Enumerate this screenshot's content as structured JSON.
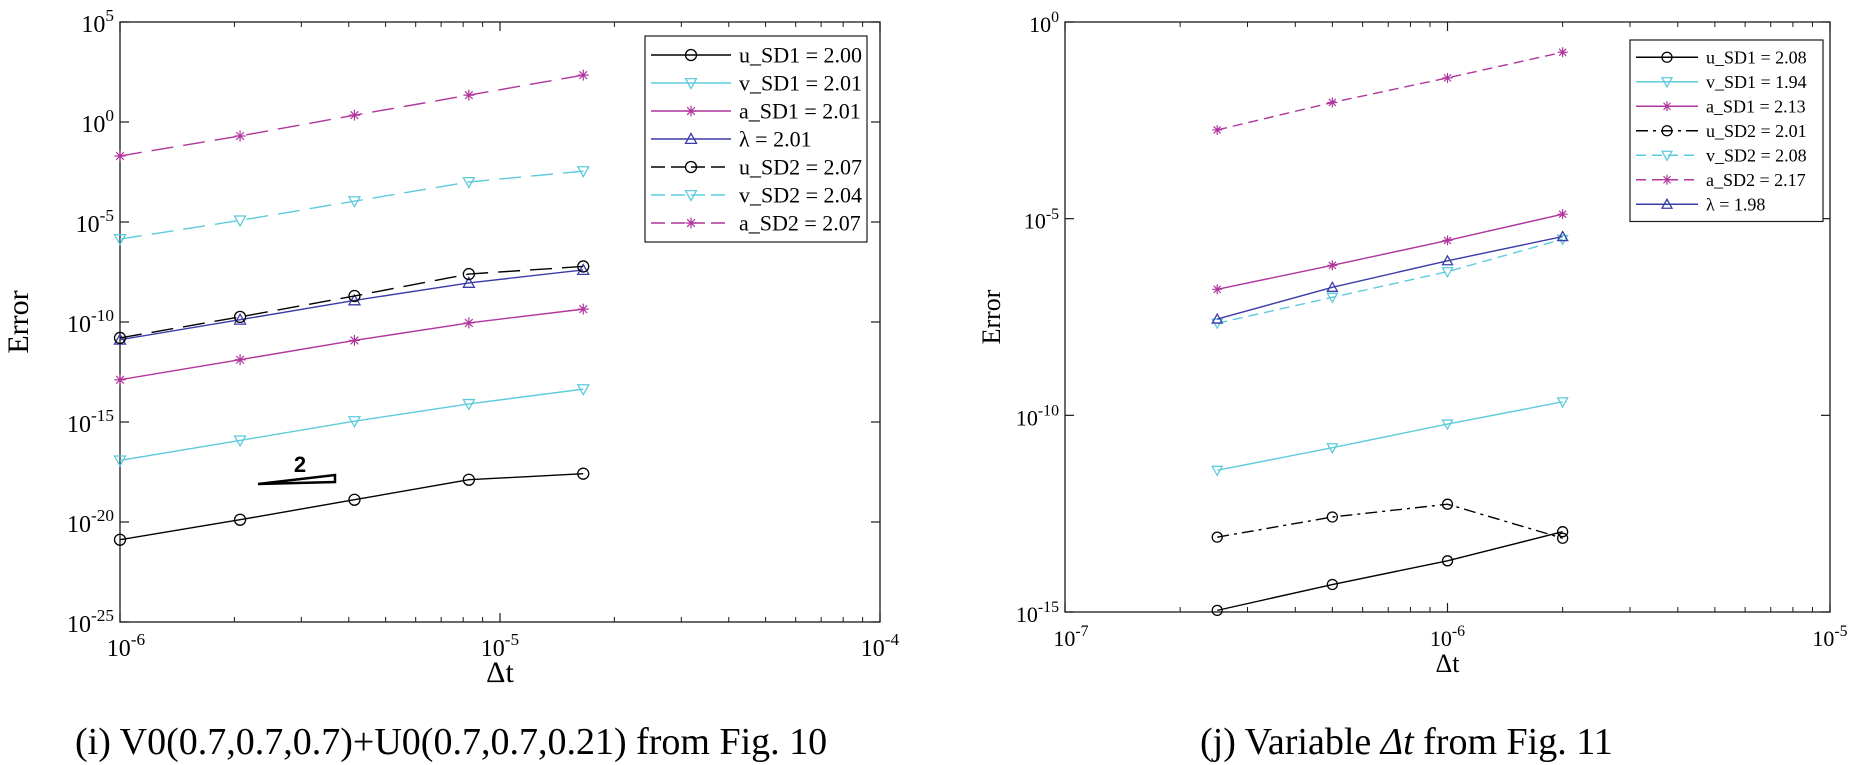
{
  "colors": {
    "black": "#000000",
    "cyan": "#5ecbdc",
    "magenta": "#b0359c",
    "blue": "#3c3ca8",
    "frame": "#1a1a1a"
  },
  "chart_data": [
    {
      "type": "line",
      "scale": "log-log",
      "title": "",
      "caption": "(i)  V0(0.7,0.7,0.7)+U0(0.7,0.7,0.21) from Fig. 10",
      "xlabel": "Δt",
      "ylabel": "Error",
      "xlim": [
        1e-06,
        0.0001
      ],
      "ylim": [
        1e-25,
        100000.0
      ],
      "x_ticks": [
        {
          "base": "10",
          "exp": "-6",
          "value": 1e-06
        },
        {
          "base": "10",
          "exp": "-5",
          "value": 1e-05
        },
        {
          "base": "10",
          "exp": "-4",
          "value": 0.0001
        }
      ],
      "y_ticks": [
        {
          "base": "10",
          "exp": "-25",
          "value": 1e-25
        },
        {
          "base": "10",
          "exp": "-20",
          "value": 1e-20
        },
        {
          "base": "10",
          "exp": "-15",
          "value": 1e-15
        },
        {
          "base": "10",
          "exp": "-10",
          "value": 1e-10
        },
        {
          "base": "10",
          "exp": "-5",
          "value": 1e-05
        },
        {
          "base": "10",
          "exp": "0",
          "value": 1
        },
        {
          "base": "10",
          "exp": "5",
          "value": 100000.0
        }
      ],
      "legend_location": "top-right",
      "annotation": {
        "text": "2",
        "meaning": "slope-2 reference triangle"
      },
      "x": [
        1e-06,
        2.07e-06,
        4.14e-06,
        8.28e-06,
        1.656e-05
      ],
      "series": [
        {
          "name": "u_SD1 = 2.00",
          "color": "black",
          "dash": "solid",
          "marker": "circle",
          "values": [
            1.3e-21,
            1.3e-20,
            1.3e-19,
            1.3e-18,
            2.6e-18
          ]
        },
        {
          "name": "v_SD1 = 2.01",
          "color": "cyan",
          "dash": "solid",
          "marker": "triangle-down",
          "values": [
            1.2e-17,
            1.2e-16,
            1.1e-15,
            8e-15,
            4.4e-14
          ]
        },
        {
          "name": "a_SD1 = 2.01",
          "color": "magenta",
          "dash": "solid",
          "marker": "star",
          "values": [
            1.3e-13,
            1.3e-12,
            1.2e-11,
            9e-11,
            4.4e-10
          ]
        },
        {
          "name": "λ     = 2.01",
          "color": "blue",
          "dash": "solid",
          "marker": "triangle-up",
          "values": [
            1.3e-11,
            1.3e-10,
            1.2e-09,
            9e-09,
            4e-08
          ]
        },
        {
          "name": "u_SD2 = 2.07",
          "color": "black",
          "dash": "longdash",
          "marker": "circle",
          "values": [
            1.6e-11,
            1.8e-10,
            2e-09,
            2.5e-08,
            6e-08
          ]
        },
        {
          "name": "v_SD2 = 2.04",
          "color": "cyan",
          "dash": "longdash",
          "marker": "triangle-down",
          "values": [
            1.4e-06,
            1.2e-05,
            0.00011,
            0.001,
            0.0035
          ]
        },
        {
          "name": "a_SD2 = 2.07",
          "color": "magenta",
          "dash": "longdash",
          "marker": "star",
          "values": [
            0.02,
            0.2,
            2.2,
            22,
            220
          ]
        }
      ]
    },
    {
      "type": "line",
      "scale": "log-log",
      "title": "",
      "caption_prefix": "(j)  Variable ",
      "caption_symbol": "Δt",
      "caption_suffix": " from Fig. 11",
      "xlabel": "Δt",
      "ylabel": "Error",
      "xlim": [
        1e-07,
        1e-05
      ],
      "ylim": [
        1e-15,
        1
      ],
      "x_ticks": [
        {
          "base": "10",
          "exp": "-7",
          "value": 1e-07
        },
        {
          "base": "10",
          "exp": "-6",
          "value": 1e-06
        },
        {
          "base": "10",
          "exp": "-5",
          "value": 1e-05
        }
      ],
      "y_ticks": [
        {
          "base": "10",
          "exp": "-15",
          "value": 1e-15
        },
        {
          "base": "10",
          "exp": "-10",
          "value": 1e-10
        },
        {
          "base": "10",
          "exp": "-5",
          "value": 1e-05
        },
        {
          "base": "10",
          "exp": "0",
          "value": 1
        }
      ],
      "legend_location": "top-right",
      "x": [
        2.5e-07,
        5e-07,
        1e-06,
        2e-06
      ],
      "series": [
        {
          "name": "u_SD1 = 2.08",
          "color": "black",
          "dash": "solid",
          "marker": "circle",
          "values": [
            1.1e-15,
            5e-15,
            2e-14,
            1.1e-13
          ]
        },
        {
          "name": "v_SD1 = 1.94",
          "color": "cyan",
          "dash": "solid",
          "marker": "triangle-down",
          "values": [
            4e-12,
            1.5e-11,
            6e-11,
            2.2e-10
          ]
        },
        {
          "name": "a_SD1 = 2.13",
          "color": "magenta",
          "dash": "solid",
          "marker": "star",
          "values": [
            1.6e-07,
            6.5e-07,
            2.8e-06,
            1.3e-05
          ]
        },
        {
          "name": "u_SD2 = 2.01",
          "color": "black",
          "dash": "dashdot",
          "marker": "circle",
          "values": [
            8e-14,
            2.6e-13,
            5.5e-13,
            7.5e-14
          ]
        },
        {
          "name": "v_SD2 = 2.08",
          "color": "cyan",
          "dash": "dash",
          "marker": "triangle-down",
          "values": [
            2.2e-08,
            1e-07,
            4.5e-07,
            3e-06
          ]
        },
        {
          "name": "a_SD2 = 2.17",
          "color": "magenta",
          "dash": "dash",
          "marker": "star",
          "values": [
            0.0018,
            0.009,
            0.038,
            0.17
          ]
        },
        {
          "name": "λ = 1.98",
          "color": "blue",
          "dash": "solid",
          "marker": "triangle-up",
          "values": [
            2.8e-08,
            1.8e-07,
            8.5e-07,
            3.5e-06
          ]
        }
      ]
    }
  ]
}
